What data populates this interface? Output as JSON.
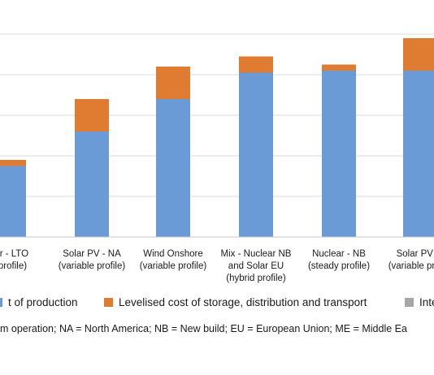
{
  "chart_data": {
    "type": "bar",
    "stacked": true,
    "categories": [
      "Nuclear - LTO (steady profile)",
      "Solar PV - NA (variable profile)",
      "Wind Onshore (variable profile)",
      "Mix - Nuclear NB and Solar EU (hybrid profile)",
      "Nuclear - NB (steady profile)",
      "Solar PV - ME (variable profile)"
    ],
    "category_lines": [
      [
        "ear - LTO",
        "y profile)"
      ],
      [
        "Solar PV - NA",
        "(variable profile)"
      ],
      [
        "Wind Onshore",
        "(variable profile)"
      ],
      [
        "Mix - Nuclear NB",
        "and Solar EU",
        "(hybrid profile)"
      ],
      [
        "Nuclear - NB",
        "(steady profile)"
      ],
      [
        "Solar PV - I",
        "(variable profile"
      ]
    ],
    "series": [
      {
        "name": "t of production",
        "color": "#6a9bd6",
        "values": [
          1.75,
          2.6,
          3.4,
          4.05,
          4.1,
          4.1
        ]
      },
      {
        "name": "Levelised cost of storage, distribution and transport",
        "color": "#e07b32",
        "values": [
          0.15,
          0.8,
          0.8,
          0.4,
          0.15,
          0.8
        ]
      },
      {
        "name": "Inte",
        "color": "#a6a6a6",
        "values": [
          0,
          0,
          0,
          0,
          0,
          0
        ]
      }
    ],
    "ylim": [
      0,
      5
    ],
    "grid": true,
    "legend_position": "bottom"
  },
  "footnote": "m operation; NA = North America; NB = New build; EU = European Union; ME = Middle Ea"
}
